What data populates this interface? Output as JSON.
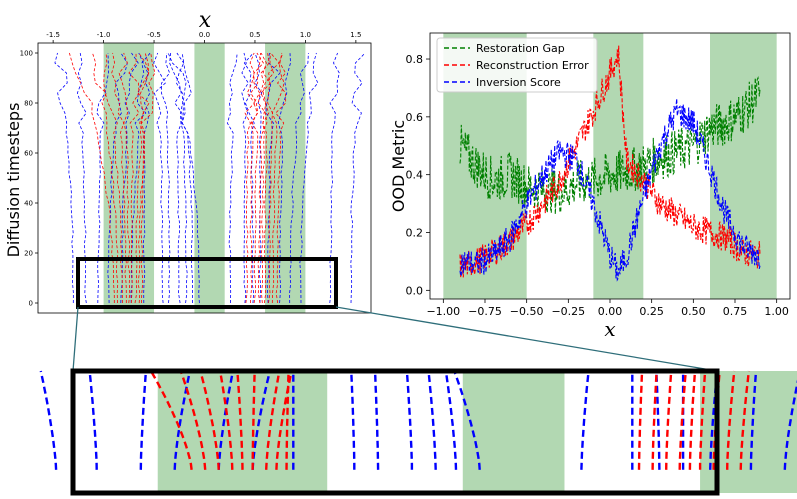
{
  "chart_data": [
    {
      "id": "diffusion",
      "type": "line",
      "title": "x",
      "xlabel": "",
      "ylabel": "Diffusion timesteps",
      "xlim": [
        -1.65,
        1.65
      ],
      "ylim": [
        -4,
        104
      ],
      "xticks": [
        "-1.5",
        "-1.0",
        "-0.5",
        "0.0",
        "0.5",
        "1.0",
        "1.5"
      ],
      "xtick_values": [
        -1.5,
        -1.0,
        -0.5,
        0.0,
        0.5,
        1.0,
        1.5
      ],
      "yticks": [
        "0",
        "20",
        "40",
        "60",
        "80",
        "100"
      ],
      "ytick_values": [
        0,
        20,
        40,
        60,
        80,
        100
      ],
      "shaded_x": [
        [
          -1.0,
          -0.5
        ],
        [
          -0.1,
          0.2
        ],
        [
          0.6,
          1.0
        ]
      ],
      "zoom_box_y": [
        -4,
        17
      ],
      "series": [
        {
          "name": "blue trajectories",
          "color": "#0000ff",
          "end_x": [
            -1.3,
            -1.18,
            -1.05,
            -0.95,
            -0.82,
            -0.72,
            -0.6,
            -0.42,
            -0.35,
            -0.25,
            -0.18,
            -0.12,
            -0.05,
            0.25,
            0.4,
            0.48,
            0.55,
            0.63,
            0.75,
            0.85,
            0.95,
            1.25,
            1.45
          ],
          "start_x": [
            -1.45,
            -1.25,
            -1.0,
            -0.8,
            -0.68,
            -0.55,
            -0.6,
            -0.45,
            -0.38,
            -0.3,
            -0.25,
            -0.22,
            -0.3,
            0.32,
            0.4,
            0.45,
            0.55,
            0.7,
            0.8,
            1.0,
            1.15,
            1.3,
            1.55
          ]
        },
        {
          "name": "red trajectories",
          "color": "#ff0000",
          "end_x": [
            -0.9,
            -0.86,
            -0.82,
            -0.78,
            -0.75,
            -0.72,
            -0.68,
            -0.65,
            -0.62,
            0.42,
            0.46,
            0.5,
            0.54,
            0.57,
            0.6,
            0.64,
            0.68,
            0.72
          ],
          "start_x": [
            -1.3,
            -1.1,
            -1.0,
            -0.9,
            -0.8,
            -0.7,
            -0.55,
            -0.5,
            -0.6,
            0.45,
            0.5,
            0.55,
            0.6,
            0.62,
            0.65,
            0.7,
            0.75,
            0.8
          ]
        }
      ]
    },
    {
      "id": "ood",
      "type": "line",
      "title": "",
      "xlabel": "x",
      "ylabel": "OOD Metric",
      "xlim": [
        -1.08,
        1.08
      ],
      "ylim": [
        -0.03,
        0.89
      ],
      "xticks": [
        "−1.00",
        "−0.75",
        "−0.50",
        "−0.25",
        "0.00",
        "0.25",
        "0.50",
        "0.75",
        "1.00"
      ],
      "xtick_values": [
        -1.0,
        -0.75,
        -0.5,
        -0.25,
        0.0,
        0.25,
        0.5,
        0.75,
        1.0
      ],
      "yticks": [
        "0.0",
        "0.2",
        "0.4",
        "0.6",
        "0.8"
      ],
      "ytick_values": [
        0.0,
        0.2,
        0.4,
        0.6,
        0.8
      ],
      "shaded_x": [
        [
          -1.0,
          -0.5
        ],
        [
          -0.1,
          0.2
        ],
        [
          0.6,
          1.0
        ]
      ],
      "legend_position": "top-left",
      "series": [
        {
          "name": "Restoration Gap",
          "color": "#008000",
          "x": [
            -0.9,
            -0.8,
            -0.7,
            -0.6,
            -0.5,
            -0.4,
            -0.3,
            -0.2,
            -0.1,
            0.0,
            0.1,
            0.2,
            0.3,
            0.4,
            0.5,
            0.6,
            0.7,
            0.8,
            0.9
          ],
          "y": [
            0.5,
            0.43,
            0.38,
            0.4,
            0.36,
            0.35,
            0.34,
            0.37,
            0.38,
            0.4,
            0.41,
            0.43,
            0.46,
            0.48,
            0.5,
            0.56,
            0.58,
            0.62,
            0.68
          ]
        },
        {
          "name": "Reconstruction Error",
          "color": "#ff0000",
          "x": [
            -0.9,
            -0.8,
            -0.7,
            -0.6,
            -0.5,
            -0.4,
            -0.3,
            -0.2,
            -0.1,
            0.0,
            0.05,
            0.1,
            0.2,
            0.3,
            0.4,
            0.5,
            0.6,
            0.7,
            0.8,
            0.9
          ],
          "y": [
            0.08,
            0.1,
            0.13,
            0.17,
            0.23,
            0.3,
            0.38,
            0.5,
            0.62,
            0.75,
            0.82,
            0.45,
            0.38,
            0.3,
            0.26,
            0.22,
            0.2,
            0.18,
            0.13,
            0.12
          ]
        },
        {
          "name": "Inversion Score",
          "color": "#0000ff",
          "x": [
            -0.9,
            -0.8,
            -0.7,
            -0.6,
            -0.5,
            -0.4,
            -0.3,
            -0.2,
            -0.1,
            0.0,
            0.05,
            0.1,
            0.2,
            0.3,
            0.4,
            0.5,
            0.6,
            0.7,
            0.8,
            0.9
          ],
          "y": [
            0.1,
            0.09,
            0.12,
            0.18,
            0.3,
            0.4,
            0.48,
            0.45,
            0.3,
            0.12,
            0.06,
            0.12,
            0.32,
            0.5,
            0.62,
            0.58,
            0.42,
            0.25,
            0.15,
            0.12
          ]
        }
      ]
    }
  ],
  "labels": {
    "left_title": "x",
    "left_ylabel": "Diffusion timesteps",
    "right_ylabel": "OOD Metric",
    "right_xlabel": "x",
    "legend": [
      "Restoration Gap",
      "Reconstruction Error",
      "Inversion Score"
    ]
  },
  "colors": {
    "shade": "#b2d8b2",
    "blue": "#0000ff",
    "red": "#ff0000",
    "green": "#008000",
    "connector": "#2e6e7a"
  }
}
